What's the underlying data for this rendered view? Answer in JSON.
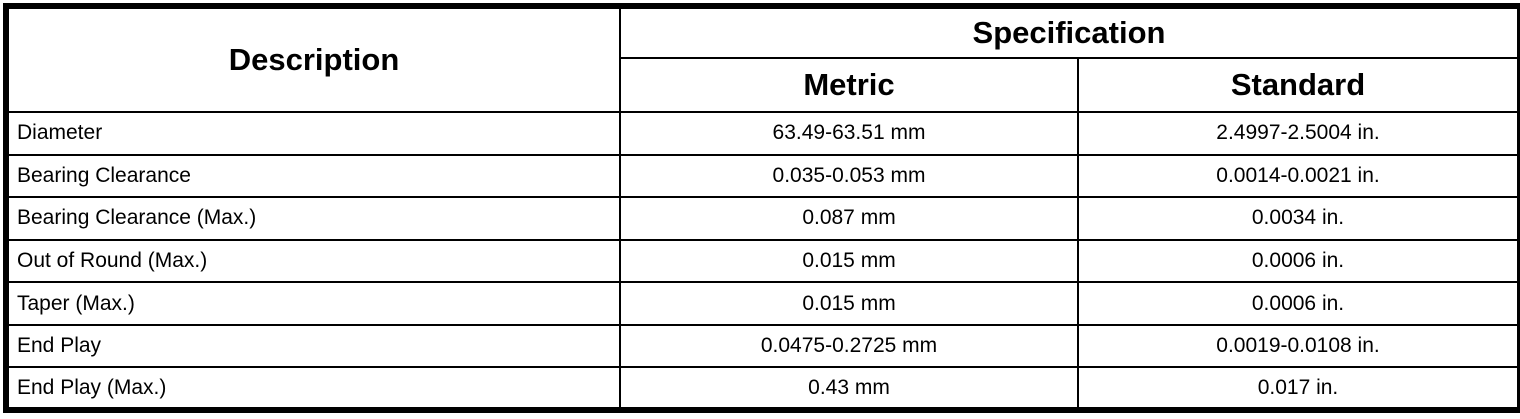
{
  "table": {
    "headers": {
      "description": "Description",
      "specification": "Specification",
      "metric": "Metric",
      "standard": "Standard"
    },
    "rows": [
      {
        "description": "Diameter",
        "metric": "63.49-63.51 mm",
        "standard": "2.4997-2.5004 in."
      },
      {
        "description": "Bearing Clearance",
        "metric": "0.035-0.053 mm",
        "standard": "0.0014-0.0021 in."
      },
      {
        "description": "Bearing Clearance (Max.)",
        "metric": "0.087 mm",
        "standard": "0.0034 in."
      },
      {
        "description": "Out of Round (Max.)",
        "metric": "0.015 mm",
        "standard": "0.0006 in."
      },
      {
        "description": "Taper (Max.)",
        "metric": "0.015 mm",
        "standard": "0.0006 in."
      },
      {
        "description": "End Play",
        "metric": "0.0475-0.2725 mm",
        "standard": "0.0019-0.0108 in."
      },
      {
        "description": "End Play (Max.)",
        "metric": "0.43 mm",
        "standard": "0.017 in."
      }
    ],
    "colors": {
      "border": "#000000",
      "text": "#000000",
      "background": "#ffffff"
    }
  }
}
